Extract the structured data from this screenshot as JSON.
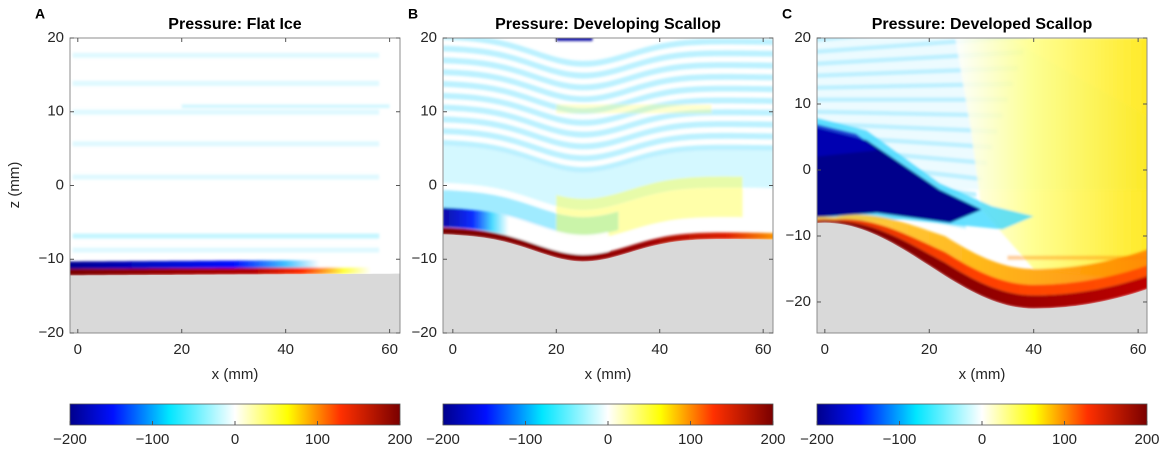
{
  "chart_data": [
    {
      "type": "heatmap",
      "panel": "A",
      "title": "Pressure: Flat Ice",
      "xlabel": "x (mm)",
      "ylabel": "z (mm)",
      "xlim": [
        -1.5,
        62
      ],
      "ylim": [
        -20,
        20
      ],
      "xticks": [
        0,
        20,
        40,
        60
      ],
      "yticks": [
        {
          "value": -20,
          "label": "−20"
        },
        {
          "value": -10,
          "label": "−10"
        },
        0,
        10,
        20
      ],
      "colorbar": {
        "lim": [
          -200,
          200
        ],
        "ticks": [
          {
            "value": -200,
            "label": "−200"
          },
          {
            "value": -100,
            "label": "−100"
          },
          0,
          100,
          200
        ]
      }
    },
    {
      "type": "heatmap",
      "panel": "B",
      "title": "Pressure: Developing Scallop",
      "xlabel": "x (mm)",
      "xlim": [
        -1.9,
        61.9
      ],
      "ylim": [
        -20,
        20
      ],
      "xticks": [
        0,
        20,
        40,
        60
      ],
      "yticks": [
        {
          "value": -20,
          "label": "−20"
        },
        {
          "value": -10,
          "label": "−10"
        },
        0,
        10,
        20
      ],
      "colorbar": {
        "lim": [
          -200,
          200
        ],
        "ticks": [
          {
            "value": -200,
            "label": "−200"
          },
          {
            "value": -100,
            "label": "−100"
          },
          0,
          100,
          200
        ]
      }
    },
    {
      "type": "heatmap",
      "panel": "C",
      "title": "Pressure: Developed Scallop",
      "xlabel": "x (mm)",
      "xlim": [
        -1.5,
        61.7
      ],
      "ylim": [
        -24.7,
        20
      ],
      "xticks": [
        0,
        20,
        40,
        60
      ],
      "yticks": [
        {
          "value": -20,
          "label": "−20"
        },
        {
          "value": -10,
          "label": "−10"
        },
        0,
        10,
        20
      ],
      "colorbar": {
        "lim": [
          -200,
          200
        ],
        "ticks": [
          {
            "value": -200,
            "label": "−200"
          },
          {
            "value": -100,
            "label": "−100"
          },
          0,
          100,
          200
        ]
      }
    }
  ]
}
